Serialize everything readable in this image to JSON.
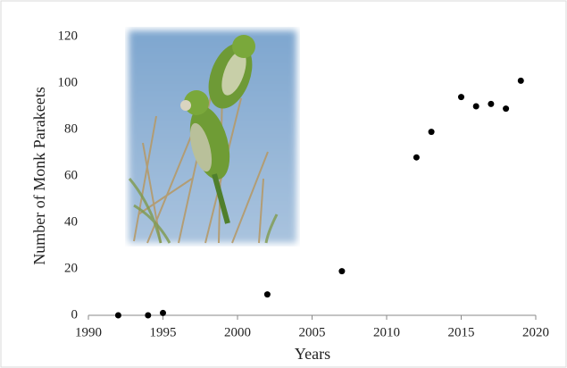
{
  "chart_data": {
    "type": "scatter",
    "x": [
      1992,
      1994,
      1995,
      2002,
      2007,
      2012,
      2013,
      2015,
      2016,
      2017,
      2018,
      2019
    ],
    "values": [
      0,
      0,
      1,
      9,
      19,
      68,
      79,
      94,
      90,
      91,
      89,
      101
    ],
    "color": "#000000",
    "xlabel": "Years",
    "ylabel": "Number of Monk Parakeets",
    "xlim": [
      1990,
      2020
    ],
    "xticks": [
      1990,
      1995,
      2000,
      2005,
      2010,
      2015,
      2020
    ],
    "ylim": [
      0,
      120
    ],
    "yticks": [
      0,
      20,
      40,
      60,
      80,
      100,
      120
    ],
    "grid": false
  }
}
